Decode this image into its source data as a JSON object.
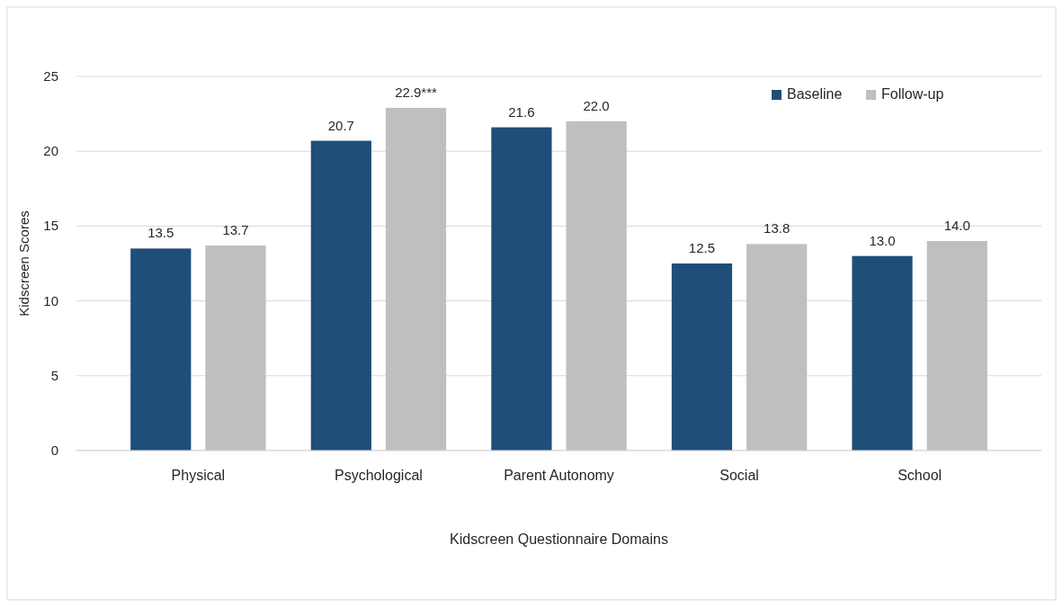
{
  "chart_data": {
    "type": "bar",
    "xlabel": "Kidscreen Questionnaire Domains",
    "ylabel": "Kidscreen Scores",
    "categories": [
      "Physical",
      "Psychological",
      "Parent Autonomy",
      "Social",
      "School"
    ],
    "series": [
      {
        "name": "Baseline",
        "color": "#1f4e79",
        "values": [
          13.5,
          20.7,
          21.6,
          12.5,
          13.0
        ],
        "value_labels": [
          "13.5",
          "20.7",
          "21.6",
          "12.5",
          "13.0"
        ]
      },
      {
        "name": "Follow-up",
        "color": "#bfbfbf",
        "values": [
          13.7,
          22.9,
          22.0,
          13.8,
          14.0
        ],
        "value_labels": [
          "13.7",
          "22.9***",
          "22.0",
          "13.8",
          "14.0"
        ]
      }
    ],
    "ylim": [
      0,
      25
    ],
    "yticks": [
      0,
      5,
      10,
      15,
      20,
      25
    ],
    "grid": "y",
    "legend": "top right"
  }
}
